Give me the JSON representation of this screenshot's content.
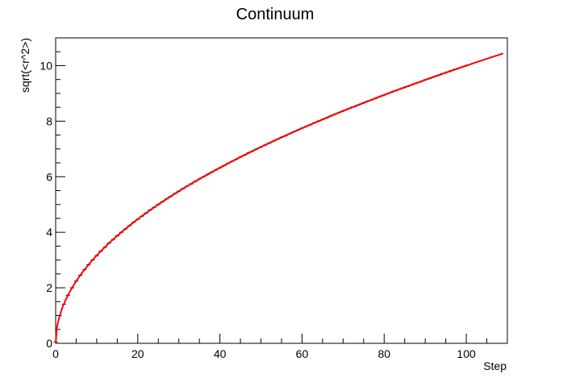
{
  "chart_data": {
    "type": "scatter",
    "title": "Continuum",
    "xlabel": "Step",
    "ylabel": "sqrt(<r^2>)",
    "xlim": [
      0,
      110
    ],
    "ylim": [
      0,
      11
    ],
    "x_ticks": [
      0,
      20,
      40,
      60,
      80,
      100
    ],
    "y_ticks": [
      0,
      2,
      4,
      6,
      8,
      10
    ],
    "x_tick_labels": [
      "0",
      "20",
      "40",
      "60",
      "80",
      "100"
    ],
    "y_tick_labels": [
      "0",
      "2",
      "4",
      "6",
      "8",
      "10"
    ],
    "grid": false,
    "legend": "none",
    "series": [
      {
        "kind": "points-with-errorbars",
        "color": "#000000",
        "x": [
          0,
          1,
          2,
          3,
          4,
          5,
          6,
          7,
          8,
          9,
          10,
          11,
          12,
          13,
          14,
          15,
          16,
          17,
          18,
          19,
          20,
          21,
          22,
          23,
          24,
          25,
          26,
          27,
          28,
          29,
          30,
          31,
          32,
          33,
          34,
          35,
          36,
          37,
          38,
          39,
          40,
          41,
          42,
          43,
          44,
          45,
          46,
          47,
          48,
          49,
          50,
          51,
          52,
          53,
          54,
          55,
          56,
          57,
          58,
          59,
          60,
          61,
          62,
          63,
          64,
          65,
          66,
          67,
          68,
          69,
          70,
          71,
          72,
          73,
          74,
          75,
          76,
          77,
          78,
          79,
          80,
          81,
          82,
          83,
          84,
          85,
          86,
          87,
          88,
          89,
          90,
          91,
          92,
          93,
          94,
          95,
          96,
          97,
          98,
          99,
          100
        ],
        "y": [
          0.05,
          1.0,
          1.41,
          1.73,
          2.0,
          2.24,
          2.45,
          2.65,
          2.83,
          3.0,
          3.16,
          3.32,
          3.46,
          3.61,
          3.74,
          3.87,
          4.0,
          4.12,
          4.24,
          4.36,
          4.47,
          4.58,
          4.69,
          4.8,
          4.9,
          5.0,
          5.1,
          5.2,
          5.29,
          5.39,
          5.48,
          5.57,
          5.66,
          5.74,
          5.83,
          5.92,
          6.0,
          6.08,
          6.16,
          6.24,
          6.32,
          6.4,
          6.48,
          6.56,
          6.63,
          6.71,
          6.78,
          6.86,
          6.93,
          7.0,
          7.07,
          7.14,
          7.21,
          7.28,
          7.35,
          7.42,
          7.48,
          7.55,
          7.62,
          7.68,
          7.75,
          7.81,
          7.87,
          7.94,
          8.0,
          8.06,
          8.12,
          8.19,
          8.25,
          8.31,
          8.37,
          8.43,
          8.49,
          8.54,
          8.6,
          8.66,
          8.72,
          8.77,
          8.83,
          8.89,
          8.94,
          9.0,
          9.06,
          9.11,
          9.17,
          9.22,
          9.27,
          9.33,
          9.38,
          9.43,
          9.49,
          9.54,
          9.59,
          9.64,
          9.7,
          9.75,
          9.8,
          9.85,
          9.9,
          9.95,
          10.0
        ],
        "xerr": 0.5,
        "yerr": 0.04
      },
      {
        "kind": "fit-line",
        "color": "#ff0000",
        "function": "sqrt(x)",
        "x_range": [
          0,
          109
        ]
      }
    ]
  }
}
